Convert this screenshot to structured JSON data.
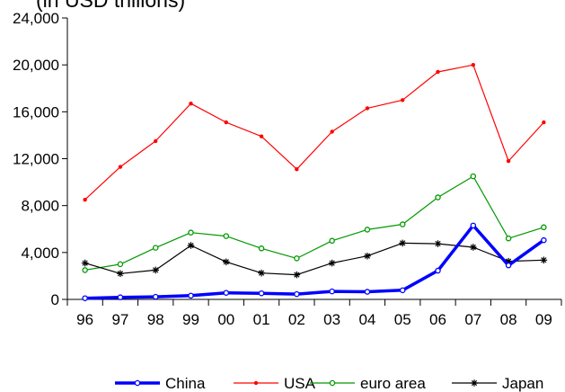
{
  "chart_data": {
    "type": "line",
    "title": "(in USD trillions)",
    "x": [
      "96",
      "97",
      "98",
      "99",
      "00",
      "01",
      "02",
      "03",
      "04",
      "05",
      "06",
      "07",
      "08",
      "09"
    ],
    "ylim": [
      0,
      24000
    ],
    "y_ticks": [
      "0",
      "4,000",
      "8,000",
      "12,000",
      "16,000",
      "20,000",
      "24,000"
    ],
    "grid": false,
    "legend_position": "bottom",
    "series": [
      {
        "name": "China",
        "color": "#0000ff",
        "marker": "open-circle",
        "values": [
          100,
          180,
          220,
          320,
          560,
          520,
          450,
          680,
          650,
          780,
          2450,
          6300,
          2900,
          5050
        ]
      },
      {
        "name": "USA",
        "color": "#ff0000",
        "marker": "dot",
        "values": [
          8500,
          11300,
          13500,
          16700,
          15100,
          13900,
          11100,
          14300,
          16300,
          17000,
          19400,
          20000,
          11800,
          15100
        ]
      },
      {
        "name": "euro area",
        "color": "#009900",
        "marker": "open-circle",
        "values": [
          2500,
          3000,
          4400,
          5700,
          5400,
          4350,
          3500,
          5000,
          5950,
          6400,
          8700,
          10500,
          5200,
          6150
        ]
      },
      {
        "name": "Japan",
        "color": "#000000",
        "marker": "star",
        "values": [
          3100,
          2200,
          2500,
          4600,
          3200,
          2250,
          2100,
          3100,
          3700,
          4800,
          4750,
          4450,
          3250,
          3350
        ]
      }
    ]
  }
}
